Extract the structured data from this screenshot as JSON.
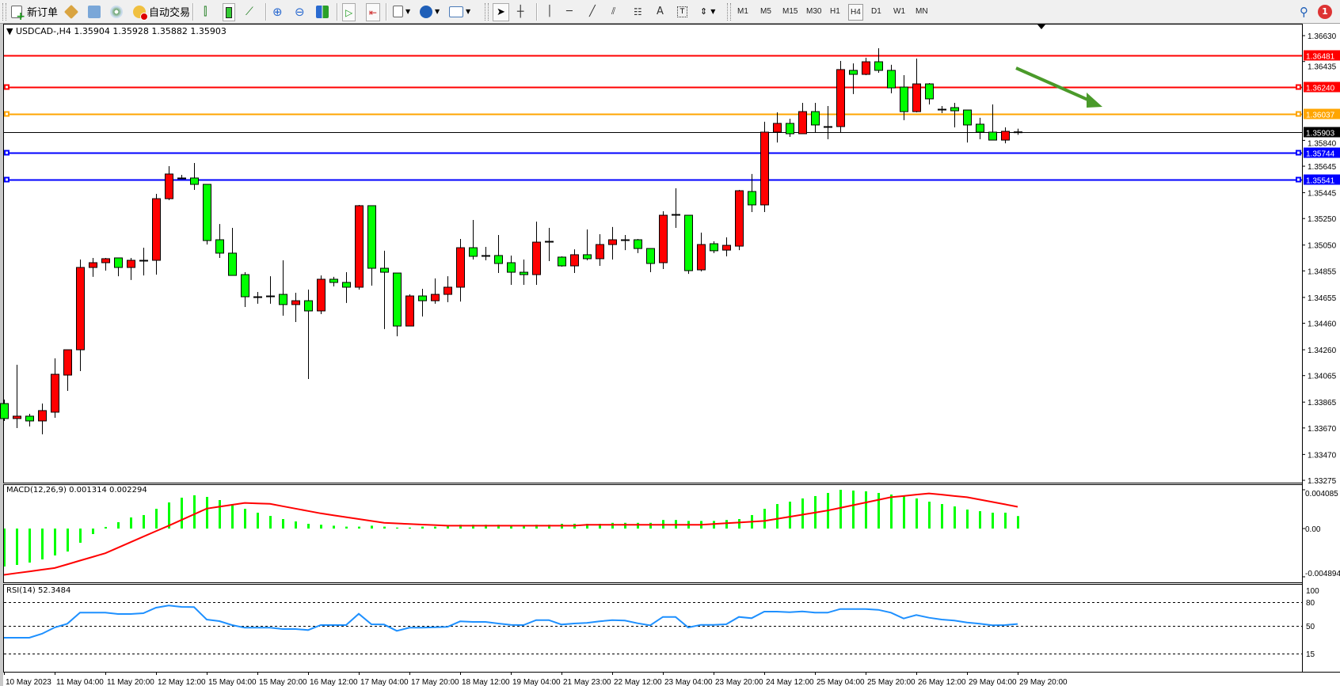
{
  "toolbar": {
    "new_order_label": "新订单",
    "auto_trading_label": "自动交易",
    "timeframes": [
      "M1",
      "M5",
      "M15",
      "M30",
      "H1",
      "H4",
      "D1",
      "W1",
      "MN"
    ],
    "active_timeframe": "H4",
    "notification_count": "1",
    "icons": [
      "new-order-icon",
      "market-watch-icon",
      "data-window-icon",
      "navigator-icon",
      "signals-icon",
      "auto-trading-icon",
      "bar-chart-icon",
      "candlestick-icon",
      "line-chart-icon",
      "zoom-in-icon",
      "zoom-out-icon",
      "tile-windows-icon",
      "auto-scroll-icon",
      "chart-shift-icon",
      "indicators-icon",
      "periods-icon",
      "templates-icon",
      "cursor-icon",
      "crosshair-icon",
      "vertical-line-icon",
      "horizontal-line-icon",
      "trendline-icon",
      "equidistant-channel-icon",
      "fibonacci-icon",
      "text-icon",
      "text-label-icon",
      "arrows-icon",
      "search-icon",
      "notification-icon"
    ],
    "text_tool_label": "A"
  },
  "chart": {
    "header": "USDCAD-,H4  1.35904 1.35928 1.35882 1.35903",
    "symbol": "USDCAD-",
    "timeframe": "H4",
    "colors": {
      "bull": "#ff0000",
      "bear": "#00ff00",
      "wick": "#000000",
      "arrow": "#4a9a2a"
    }
  },
  "macd_panel": {
    "title": "MACD(12,26,9) 0.001314 0.002294",
    "axis_labels": [
      "0.004085",
      "0.00",
      "-0.004894"
    ]
  },
  "rsi_panel": {
    "title": "RSI(14) 52.3484",
    "axis_labels": [
      "100",
      "80",
      "50",
      "15"
    ]
  },
  "chart_data": {
    "type": "candlestick",
    "price_axis_labels": [
      "1.36630",
      "1.36435",
      "1.35840",
      "1.35645",
      "1.35445",
      "1.35250",
      "1.35050",
      "1.34855",
      "1.34655",
      "1.34460",
      "1.34260",
      "1.34065",
      "1.33865",
      "1.33670",
      "1.33470",
      "1.33275"
    ],
    "price_range": [
      1.33275,
      1.3663
    ],
    "time_labels": [
      "10 May 2023",
      "11 May 04:00",
      "11 May 20:00",
      "12 May 12:00",
      "15 May 04:00",
      "15 May 20:00",
      "16 May 12:00",
      "17 May 04:00",
      "17 May 20:00",
      "18 May 12:00",
      "19 May 04:00",
      "21 May 23:00",
      "22 May 12:00",
      "23 May 04:00",
      "23 May 20:00",
      "24 May 12:00",
      "25 May 04:00",
      "25 May 20:00",
      "26 May 12:00",
      "29 May 04:00",
      "29 May 20:00"
    ],
    "horizontal_lines": [
      {
        "price": "1.36481",
        "color": "#ff0000",
        "handle": false
      },
      {
        "price": "1.36240",
        "color": "#ff0000",
        "handle": true
      },
      {
        "price": "1.36037",
        "color": "#ffa500",
        "handle": true
      },
      {
        "price": "1.35903",
        "color": "#000000",
        "handle": false
      },
      {
        "price": "1.35744",
        "color": "#0000ff",
        "handle": true
      },
      {
        "price": "1.35541",
        "color": "#0000ff",
        "handle": true
      }
    ],
    "ohlc": [
      [
        1.33854,
        1.33884,
        1.33723,
        1.33741
      ],
      [
        1.33741,
        1.34147,
        1.33669,
        1.33759
      ],
      [
        1.33759,
        1.33777,
        1.33681,
        1.33723
      ],
      [
        1.33723,
        1.33854,
        1.33622,
        1.33801
      ],
      [
        1.33789,
        1.34195,
        1.33747,
        1.34075
      ],
      [
        1.34069,
        1.3426,
        1.3395,
        1.3426
      ],
      [
        1.3426,
        1.34941,
        1.34099,
        1.34881
      ],
      [
        1.34881,
        1.34953,
        1.3481,
        1.34917
      ],
      [
        1.34917,
        1.34953,
        1.34857,
        1.34947
      ],
      [
        1.34953,
        1.34953,
        1.34815,
        1.34881
      ],
      [
        1.34881,
        1.34953,
        1.34786,
        1.34935
      ],
      [
        1.34935,
        1.3503,
        1.34821,
        1.34935
      ],
      [
        1.34935,
        1.35436,
        1.34827,
        1.354
      ],
      [
        1.354,
        1.35645,
        1.35389,
        1.35586
      ],
      [
        1.35556,
        1.3558,
        1.35556,
        1.35556
      ],
      [
        1.35556,
        1.35669,
        1.35466,
        1.35508
      ],
      [
        1.35508,
        1.35508,
        1.35054,
        1.35084
      ],
      [
        1.3509,
        1.35209,
        1.34953,
        1.34989
      ],
      [
        1.34989,
        1.3518,
        1.34821,
        1.34821
      ],
      [
        1.34827,
        1.34845,
        1.34583,
        1.3466
      ],
      [
        1.3466,
        1.34696,
        1.34607,
        1.3466
      ],
      [
        1.34666,
        1.34815,
        1.34607,
        1.34666
      ],
      [
        1.34678,
        1.34935,
        1.34517,
        1.34601
      ],
      [
        1.34601,
        1.3469,
        1.34469,
        1.3463
      ],
      [
        1.3463,
        1.34714,
        1.34039,
        1.34553
      ],
      [
        1.34553,
        1.34821,
        1.34529,
        1.34792
      ],
      [
        1.34792,
        1.3481,
        1.34738,
        1.34768
      ],
      [
        1.34768,
        1.34845,
        1.34613,
        1.34732
      ],
      [
        1.34732,
        1.35353,
        1.34714,
        1.35347
      ],
      [
        1.35347,
        1.35347,
        1.34744,
        1.34875
      ],
      [
        1.34875,
        1.35007,
        1.34416,
        1.34845
      ],
      [
        1.34839,
        1.34839,
        1.34362,
        1.34439
      ],
      [
        1.34439,
        1.34678,
        1.34439,
        1.34666
      ],
      [
        1.34666,
        1.3472,
        1.34511,
        1.3463
      ],
      [
        1.3463,
        1.34798,
        1.34607,
        1.34678
      ],
      [
        1.34678,
        1.34815,
        1.34619,
        1.34732
      ],
      [
        1.34732,
        1.35096,
        1.34624,
        1.3503
      ],
      [
        1.3503,
        1.35239,
        1.34941,
        1.34965
      ],
      [
        1.34971,
        1.35036,
        1.34935,
        1.34971
      ],
      [
        1.34971,
        1.35126,
        1.34839,
        1.34911
      ],
      [
        1.34917,
        1.34971,
        1.3475,
        1.34845
      ],
      [
        1.34845,
        1.34941,
        1.3475,
        1.34827
      ],
      [
        1.34827,
        1.35227,
        1.3475,
        1.35072
      ],
      [
        1.35078,
        1.3518,
        1.34929,
        1.35078
      ],
      [
        1.34959,
        1.34965,
        1.34887,
        1.34893
      ],
      [
        1.34893,
        1.35018,
        1.34839,
        1.34977
      ],
      [
        1.34977,
        1.35168,
        1.34935,
        1.34947
      ],
      [
        1.34947,
        1.35132,
        1.34893,
        1.35054
      ],
      [
        1.35054,
        1.35186,
        1.34941,
        1.3509
      ],
      [
        1.3509,
        1.35126,
        1.35012,
        1.3509
      ],
      [
        1.3509,
        1.35096,
        1.34989,
        1.35024
      ],
      [
        1.35024,
        1.35024,
        1.34845,
        1.34911
      ],
      [
        1.34917,
        1.35305,
        1.34869,
        1.35275
      ],
      [
        1.35281,
        1.35478,
        1.3518,
        1.35281
      ],
      [
        1.35275,
        1.35275,
        1.34833,
        1.34857
      ],
      [
        1.34863,
        1.35144,
        1.34851,
        1.35054
      ],
      [
        1.3506,
        1.35078,
        1.34989,
        1.35007
      ],
      [
        1.35012,
        1.35108,
        1.34965,
        1.35048
      ],
      [
        1.35042,
        1.35466,
        1.35012,
        1.3546
      ],
      [
        1.35454,
        1.35586,
        1.35299,
        1.35353
      ],
      [
        1.35353,
        1.3598,
        1.35299,
        1.35902
      ],
      [
        1.35902,
        1.36051,
        1.35824,
        1.35968
      ],
      [
        1.35968,
        1.36003,
        1.35866,
        1.3589
      ],
      [
        1.3589,
        1.36123,
        1.3589,
        1.36057
      ],
      [
        1.36057,
        1.36123,
        1.35896,
        1.35956
      ],
      [
        1.35944,
        1.36099,
        1.35848,
        1.35944
      ],
      [
        1.35944,
        1.36439,
        1.35902,
        1.36374
      ],
      [
        1.36368,
        1.36421,
        1.36189,
        1.36338
      ],
      [
        1.36338,
        1.36463,
        1.36332,
        1.36433
      ],
      [
        1.36433,
        1.36535,
        1.3635,
        1.36368
      ],
      [
        1.36368,
        1.3641,
        1.36195,
        1.36236
      ],
      [
        1.36242,
        1.36332,
        1.35992,
        1.36057
      ],
      [
        1.36057,
        1.36457,
        1.36051,
        1.36266
      ],
      [
        1.36266,
        1.36272,
        1.36111,
        1.36153
      ],
      [
        1.36075,
        1.36099,
        1.36045,
        1.36075
      ],
      [
        1.36087,
        1.36123,
        1.35938,
        1.36063
      ],
      [
        1.36069,
        1.36069,
        1.35824,
        1.35956
      ],
      [
        1.35962,
        1.3601,
        1.35848,
        1.35902
      ],
      [
        1.35902,
        1.36111,
        1.35842,
        1.35842
      ],
      [
        1.35842,
        1.35938,
        1.35818,
        1.35908
      ],
      [
        1.35904,
        1.35928,
        1.35882,
        1.35903
      ]
    ],
    "macd_hist": [
      -0.00385,
      -0.00369,
      -0.00345,
      -0.00313,
      -0.00273,
      -0.00233,
      -0.00144,
      -0.00056,
      0.00017,
      0.00067,
      0.00117,
      0.00142,
      0.00208,
      0.00275,
      0.00325,
      0.0035,
      0.00333,
      0.003,
      0.00258,
      0.00208,
      0.00167,
      0.00133,
      0.001,
      0.00075,
      0.0005,
      0.0004,
      0.0003,
      0.0002,
      0.0002,
      0.0003,
      0.0002,
      0.0001,
      0.0001,
      0.0002,
      0.0002,
      0.0003,
      0.0004,
      0.0004,
      0.0004,
      0.0004,
      0.0003,
      0.0003,
      0.0004,
      0.0004,
      0.0005,
      0.0005,
      0.0005,
      0.0005,
      0.0006,
      0.0006,
      0.0006,
      0.0006,
      0.0009,
      0.0009,
      0.0008,
      0.0008,
      0.0008,
      0.0009,
      0.001,
      0.00142,
      0.00208,
      0.00258,
      0.00283,
      0.00317,
      0.00342,
      0.00375,
      0.00408,
      0.004,
      0.00392,
      0.00375,
      0.00358,
      0.00342,
      0.00317,
      0.00283,
      0.00258,
      0.00233,
      0.002,
      0.00183,
      0.00167,
      0.00167,
      0.001314
    ],
    "macd_signal": [
      -0.0047,
      -0.00452,
      -0.00435,
      -0.00417,
      -0.004,
      -0.00363,
      -0.00325,
      -0.00288,
      -0.0025,
      -0.00194,
      -0.00138,
      -0.00082,
      -0.00026,
      0.0003,
      0.0009,
      0.0015,
      0.0021,
      0.0023,
      0.0025,
      0.0027,
      0.00265,
      0.0026,
      0.00235,
      0.0021,
      0.00185,
      0.0016,
      0.0014,
      0.0012,
      0.001,
      0.0008,
      0.0006,
      0.00054,
      0.00048,
      0.00042,
      0.00036,
      0.0003,
      0.0003,
      0.0003,
      0.0003,
      0.0003,
      0.0003,
      0.0003,
      0.0003,
      0.0003,
      0.0003,
      0.0003,
      0.0004,
      0.0004,
      0.0004,
      0.0004,
      0.0004,
      0.0004,
      0.0004,
      0.0004,
      0.0004,
      0.0004,
      0.00048,
      0.00056,
      0.00064,
      0.00072,
      0.0008,
      0.00102,
      0.00124,
      0.00146,
      0.00168,
      0.0019,
      0.00218,
      0.00246,
      0.00274,
      0.00302,
      0.0033,
      0.00343,
      0.00357,
      0.0037,
      0.00357,
      0.00343,
      0.0033,
      0.00305,
      0.0028,
      0.00255,
      0.002294
    ],
    "macd_range": [
      -0.004894,
      0.004085
    ],
    "rsi": [
      35,
      35,
      35,
      40,
      48,
      52.7,
      66.7,
      66.7,
      66.7,
      65,
      65,
      66,
      73,
      75.7,
      74,
      73.7,
      58,
      56,
      51,
      47.7,
      47.7,
      47.7,
      46,
      46,
      44.7,
      51,
      51,
      51,
      65.3,
      52,
      51.7,
      43.7,
      47.7,
      47.7,
      48.3,
      48.7,
      55.7,
      55,
      55,
      53,
      51.3,
      51,
      57.3,
      57.3,
      51.7,
      53,
      53.7,
      55.7,
      57.3,
      56.7,
      53.3,
      50.7,
      61.3,
      61.3,
      48,
      51.3,
      51.3,
      52,
      61.3,
      59.7,
      68,
      68,
      67.3,
      68.3,
      66.7,
      66.7,
      71.3,
      71.3,
      71.3,
      70.3,
      66.7,
      59.3,
      63.7,
      60.3,
      58,
      56.7,
      54.3,
      52.7,
      50.7,
      51,
      52.3484
    ],
    "rsi_levels": [
      80,
      50,
      15
    ]
  }
}
